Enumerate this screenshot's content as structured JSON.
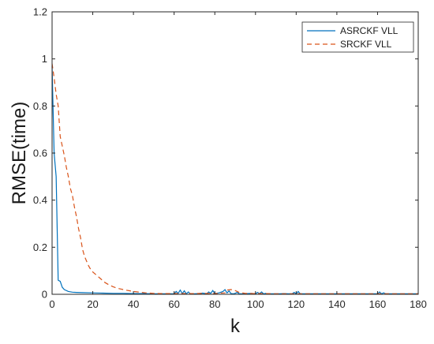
{
  "chart_data": {
    "type": "line",
    "title": "",
    "xlabel": "k",
    "ylabel": "RMSE(time)",
    "xlim": [
      0,
      180
    ],
    "ylim": [
      0,
      1.2
    ],
    "xticks": [
      0,
      20,
      40,
      60,
      80,
      100,
      120,
      140,
      160,
      180
    ],
    "yticks": [
      0,
      0.2,
      0.4,
      0.6,
      0.8,
      1,
      1.2
    ],
    "grid": false,
    "legend_position": "top-right",
    "series": [
      {
        "name": "ASRCKF VLL",
        "color": "#0072BD",
        "style": "solid",
        "x": [
          0,
          1,
          2,
          3,
          4,
          5,
          6,
          8,
          10,
          12,
          15,
          20,
          25,
          30,
          35,
          40,
          45,
          50,
          55,
          60,
          61,
          62,
          63,
          64,
          65,
          66,
          67,
          68,
          70,
          72,
          74,
          76,
          77,
          78,
          79,
          80,
          82,
          84,
          85,
          86,
          87,
          88,
          89,
          90,
          91,
          92,
          94,
          96,
          98,
          100,
          101,
          102,
          103,
          104,
          105,
          106,
          108,
          110,
          112,
          114,
          116,
          118,
          119,
          120,
          121,
          122,
          124,
          126,
          128,
          130,
          132,
          134,
          136,
          138,
          140,
          142,
          144,
          146,
          148,
          150,
          152,
          154,
          156,
          158,
          160,
          161,
          162,
          163,
          164,
          166,
          168,
          170,
          172,
          174,
          176,
          178,
          180
        ],
        "y": [
          0.97,
          0.6,
          0.5,
          0.06,
          0.055,
          0.03,
          0.02,
          0.012,
          0.009,
          0.008,
          0.007,
          0.006,
          0.005,
          0.004,
          0.004,
          0.003,
          0.003,
          0.002,
          0.002,
          0.002,
          0.012,
          0.004,
          0.018,
          0.003,
          0.015,
          0.002,
          0.01,
          0.002,
          0.002,
          0.003,
          0.005,
          0.002,
          0.01,
          0.004,
          0.016,
          0.003,
          0.006,
          0.012,
          0.02,
          0.006,
          0.014,
          0.003,
          0.002,
          0.004,
          0.008,
          0.002,
          0.002,
          0.003,
          0.004,
          0.002,
          0.008,
          0.003,
          0.01,
          0.002,
          0.004,
          0.002,
          0.002,
          0.002,
          0.002,
          0.003,
          0.002,
          0.002,
          0.008,
          0.002,
          0.012,
          0.002,
          0.002,
          0.002,
          0.002,
          0.002,
          0.002,
          0.002,
          0.002,
          0.002,
          0.002,
          0.002,
          0.002,
          0.002,
          0.002,
          0.002,
          0.002,
          0.002,
          0.002,
          0.002,
          0.002,
          0.01,
          0.002,
          0.006,
          0.002,
          0.002,
          0.002,
          0.002,
          0.002,
          0.002,
          0.002,
          0.002,
          0.002
        ]
      },
      {
        "name": "SRCKF VLL",
        "color": "#D95319",
        "style": "dashed",
        "x": [
          0,
          1,
          2,
          3,
          4,
          5,
          6,
          7,
          8,
          9,
          10,
          11,
          12,
          13,
          14,
          15,
          16,
          17,
          18,
          19,
          20,
          22,
          24,
          26,
          28,
          30,
          32,
          34,
          36,
          38,
          40,
          42,
          44,
          46,
          48,
          50,
          55,
          60,
          65,
          70,
          75,
          80,
          85,
          86,
          88,
          90,
          92,
          95,
          100,
          105,
          110,
          115,
          120,
          125,
          130,
          135,
          140,
          145,
          150,
          155,
          160,
          165,
          170,
          175,
          180
        ],
        "y": [
          0.98,
          0.92,
          0.85,
          0.8,
          0.67,
          0.63,
          0.59,
          0.54,
          0.5,
          0.45,
          0.42,
          0.37,
          0.33,
          0.28,
          0.24,
          0.19,
          0.16,
          0.14,
          0.12,
          0.105,
          0.095,
          0.08,
          0.065,
          0.05,
          0.04,
          0.032,
          0.026,
          0.022,
          0.018,
          0.015,
          0.012,
          0.01,
          0.008,
          0.006,
          0.005,
          0.004,
          0.003,
          0.003,
          0.003,
          0.003,
          0.004,
          0.003,
          0.006,
          0.018,
          0.02,
          0.016,
          0.008,
          0.004,
          0.003,
          0.003,
          0.002,
          0.002,
          0.002,
          0.002,
          0.002,
          0.002,
          0.002,
          0.002,
          0.002,
          0.002,
          0.002,
          0.002,
          0.002,
          0.002,
          0.002
        ]
      }
    ]
  }
}
